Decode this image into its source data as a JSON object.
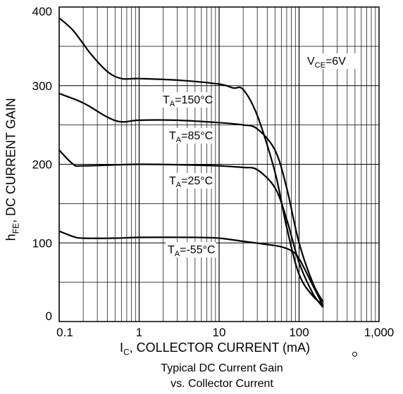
{
  "chart_data": {
    "type": "line",
    "title": "Typical DC Current Gain",
    "subtitle": "vs. Collector Current",
    "xlabel": {
      "main": "I",
      "sub": "C",
      "rest": ", COLLECTOR CURRENT (mA)"
    },
    "ylabel": {
      "main": "h",
      "sub": "FE",
      "rest": ", DC CURRENT GAIN"
    },
    "x_scale": "log",
    "xlim": [
      0.1,
      1000
    ],
    "ylim": [
      0,
      400
    ],
    "x_ticks": [
      "0.1",
      "1",
      "10",
      "100",
      "1,000"
    ],
    "y_ticks": [
      "0",
      "100",
      "200",
      "300",
      "400"
    ],
    "grid": true,
    "condition": {
      "main": "V",
      "sub": "CE",
      "rest": "=6V"
    },
    "series": [
      {
        "name": {
          "main": "T",
          "sub": "A",
          "rest": "=150°C"
        },
        "points": [
          [
            0.1,
            386
          ],
          [
            0.15,
            370
          ],
          [
            0.25,
            340
          ],
          [
            0.4,
            318
          ],
          [
            0.6,
            309
          ],
          [
            1,
            309
          ],
          [
            3,
            307
          ],
          [
            10,
            302
          ],
          [
            15,
            297
          ],
          [
            20,
            295
          ],
          [
            30,
            262
          ],
          [
            50,
            190
          ],
          [
            70,
            120
          ],
          [
            100,
            60
          ],
          [
            150,
            32
          ],
          [
            200,
            22
          ]
        ]
      },
      {
        "name": {
          "main": "T",
          "sub": "A",
          "rest": "=85°C"
        },
        "points": [
          [
            0.1,
            290
          ],
          [
            0.2,
            278
          ],
          [
            0.4,
            260
          ],
          [
            0.6,
            254
          ],
          [
            1,
            256
          ],
          [
            3,
            256
          ],
          [
            10,
            253
          ],
          [
            20,
            250
          ],
          [
            30,
            245
          ],
          [
            50,
            218
          ],
          [
            70,
            170
          ],
          [
            100,
            100
          ],
          [
            150,
            48
          ],
          [
            200,
            25
          ]
        ]
      },
      {
        "name": {
          "main": "T",
          "sub": "A",
          "rest": "=25°C"
        },
        "points": [
          [
            0.1,
            218
          ],
          [
            0.15,
            200
          ],
          [
            0.2,
            198
          ],
          [
            1,
            200
          ],
          [
            5,
            199
          ],
          [
            10,
            198
          ],
          [
            20,
            196
          ],
          [
            30,
            193
          ],
          [
            50,
            170
          ],
          [
            70,
            130
          ],
          [
            100,
            75
          ],
          [
            150,
            35
          ],
          [
            200,
            18
          ]
        ]
      },
      {
        "name": {
          "main": "T",
          "sub": "A",
          "rest": "=-55°C"
        },
        "points": [
          [
            0.1,
            115
          ],
          [
            0.15,
            108
          ],
          [
            0.2,
            106
          ],
          [
            0.5,
            106
          ],
          [
            1,
            107
          ],
          [
            5,
            107
          ],
          [
            10,
            106
          ],
          [
            20,
            102
          ],
          [
            40,
            98
          ],
          [
            60,
            95
          ],
          [
            80,
            90
          ],
          [
            100,
            80
          ],
          [
            150,
            45
          ],
          [
            200,
            20
          ]
        ]
      }
    ]
  }
}
